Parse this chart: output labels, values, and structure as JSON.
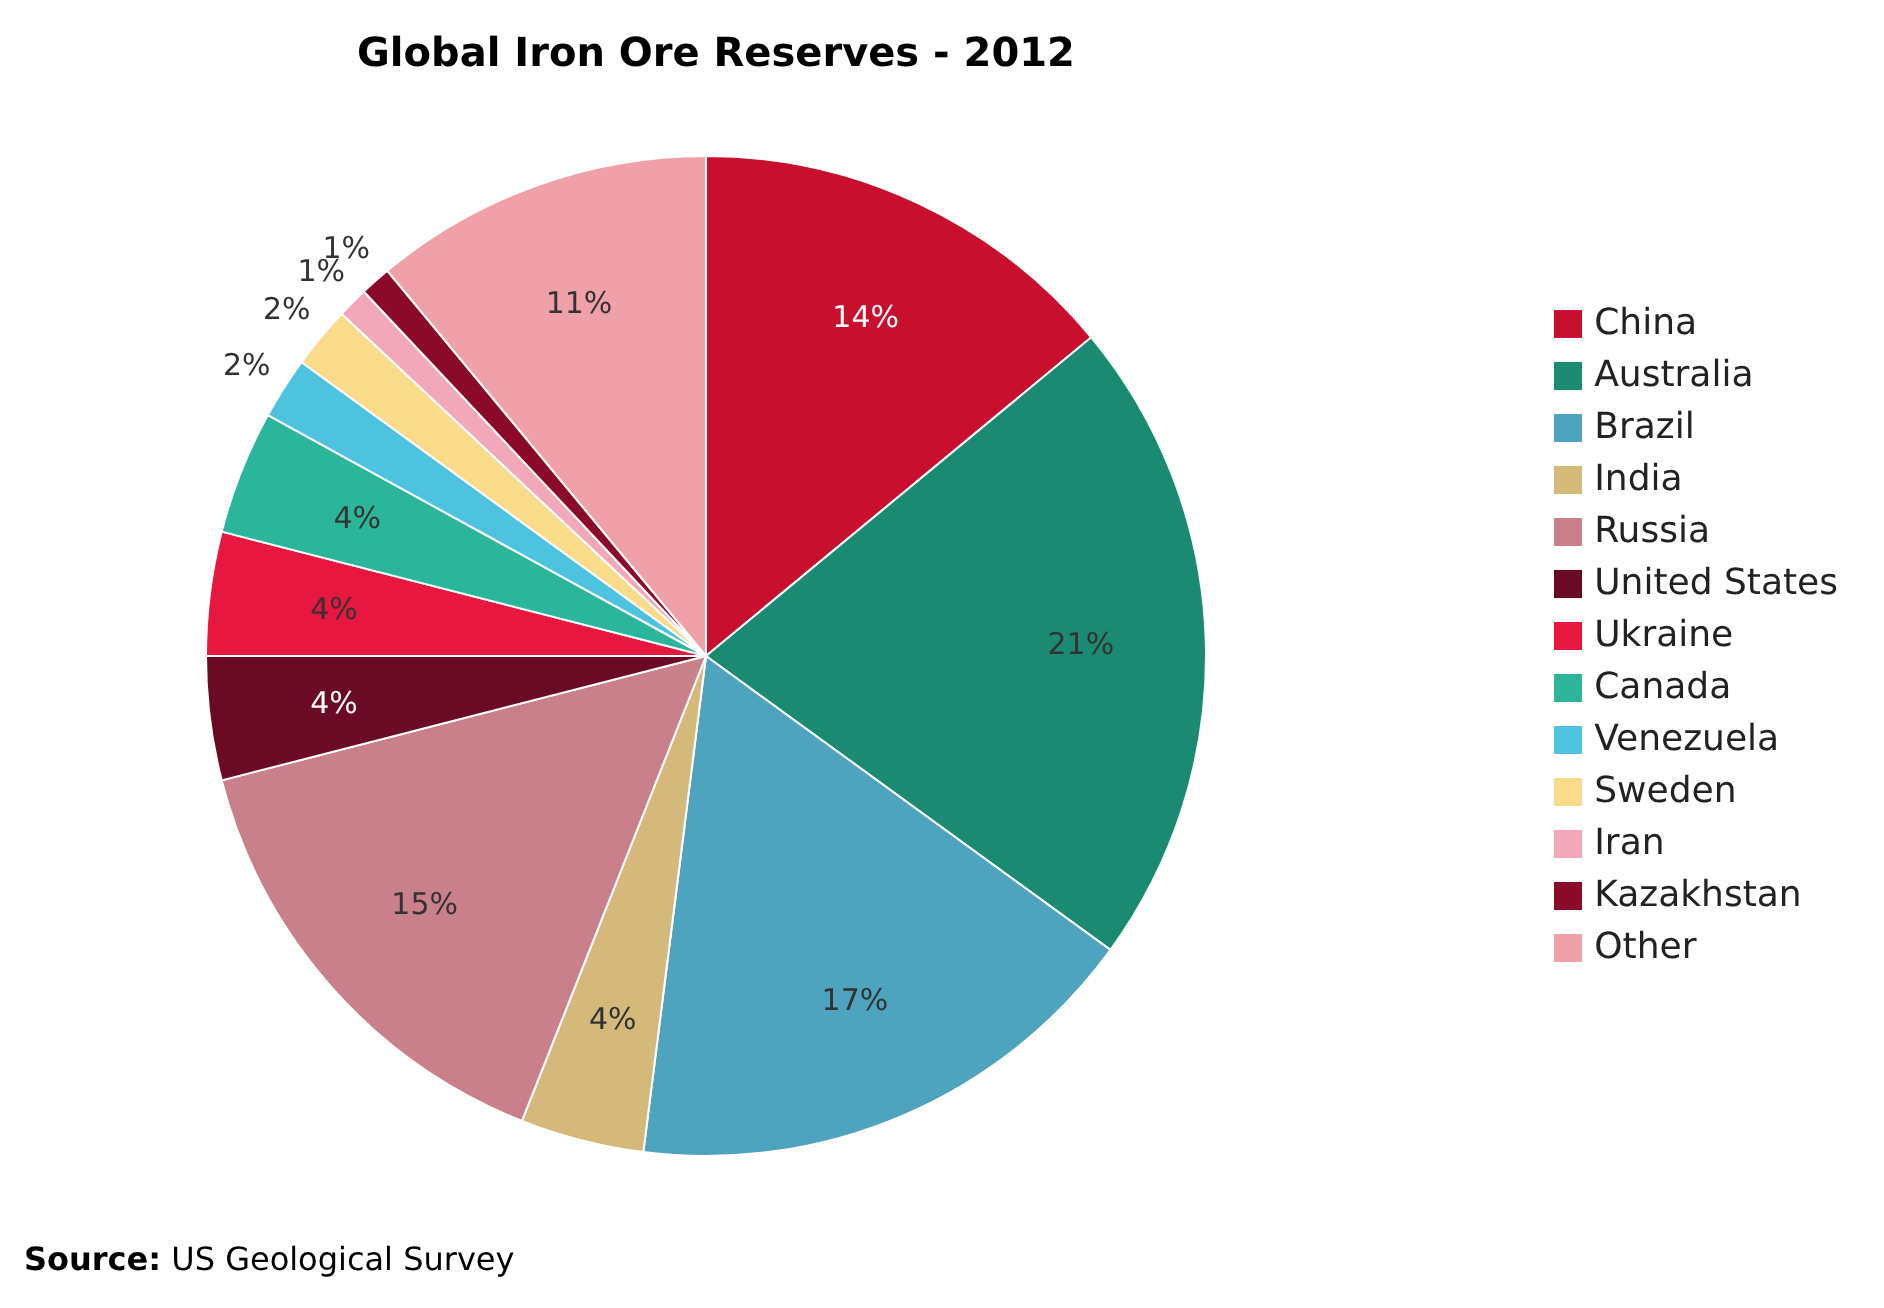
{
  "chart_data": {
    "type": "pie",
    "title": "Global Iron Ore Reserves - 2012",
    "categories": [
      "China",
      "Australia",
      "Brazil",
      "India",
      "Russia",
      "United States",
      "Ukraine",
      "Canada",
      "Venezuela",
      "Sweden",
      "Iran",
      "Kazakhstan",
      "Other"
    ],
    "values": [
      14,
      21,
      17,
      4,
      15,
      4,
      4,
      4,
      2,
      2,
      1,
      1,
      11
    ],
    "value_labels": [
      "14%",
      "21%",
      "17%",
      "4%",
      "15%",
      "4%",
      "4%",
      "4%",
      "2%",
      "2%",
      "1%",
      "1%",
      "11%"
    ],
    "colors": [
      "#c8102e",
      "#1a8a73",
      "#4ea3bf",
      "#d4b97a",
      "#c9808a",
      "#6b0a24",
      "#e8173f",
      "#2bb59b",
      "#4dc3e0",
      "#f9db8a",
      "#f2a8b8",
      "#8b0a2a",
      "#f0a0a8"
    ],
    "legend": "right",
    "annotations": [
      "Source: US Geological Survey"
    ]
  }
}
